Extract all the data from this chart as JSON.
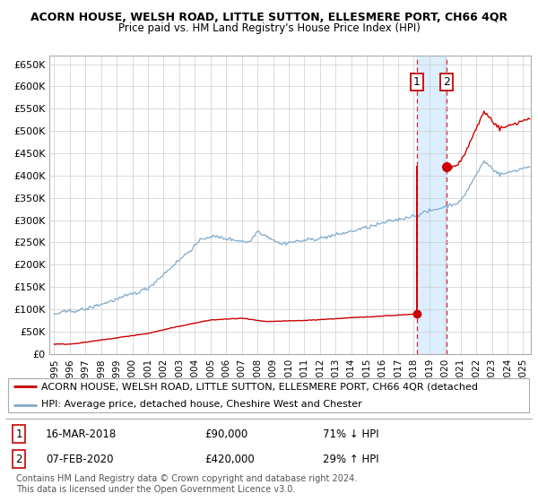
{
  "title": "ACORN HOUSE, WELSH ROAD, LITTLE SUTTON, ELLESMERE PORT, CH66 4QR",
  "subtitle": "Price paid vs. HM Land Registry's House Price Index (HPI)",
  "ylim": [
    0,
    670000
  ],
  "yticks": [
    0,
    50000,
    100000,
    150000,
    200000,
    250000,
    300000,
    350000,
    400000,
    450000,
    500000,
    550000,
    600000,
    650000
  ],
  "xlim_start": 1994.7,
  "xlim_end": 2025.5,
  "transaction1_date": 2018.21,
  "transaction1_price": 90000,
  "transaction2_date": 2020.09,
  "transaction2_price": 420000,
  "legend_label_red": "ACORN HOUSE, WELSH ROAD, LITTLE SUTTON, ELLESMERE PORT, CH66 4QR (detached",
  "legend_label_blue": "HPI: Average price, detached house, Cheshire West and Chester",
  "copyright_text": "Contains HM Land Registry data © Crown copyright and database right 2024.\nThis data is licensed under the Open Government Licence v3.0.",
  "bg_color": "#ffffff",
  "plot_bg_color": "#ffffff",
  "grid_color": "#cccccc",
  "red_color": "#cc0000",
  "blue_color": "#7faacc",
  "highlight_color": "#ddeeff",
  "title_fontsize": 9,
  "subtitle_fontsize": 8.5,
  "axis_fontsize": 8,
  "legend_fontsize": 8,
  "table_fontsize": 8.5,
  "copyright_fontsize": 7
}
